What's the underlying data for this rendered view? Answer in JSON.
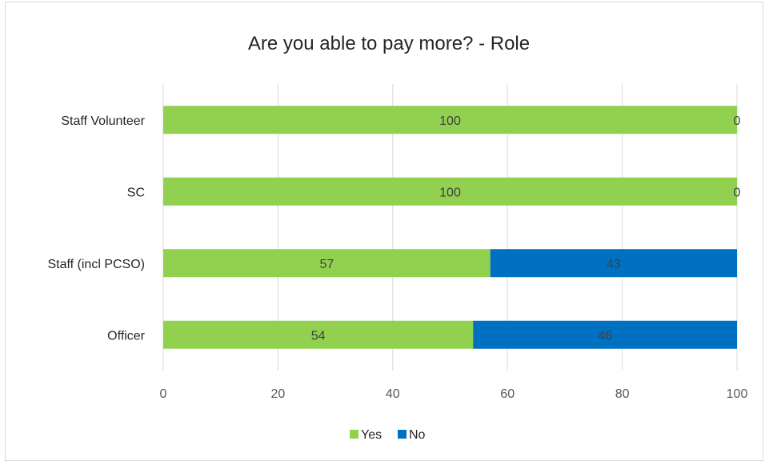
{
  "chart_data": {
    "type": "bar",
    "orientation": "horizontal",
    "stacked": true,
    "title": "Are you able to pay more? - Role",
    "xlabel": "",
    "ylabel": "",
    "categories": [
      "Staff Volunteer",
      "SC",
      "Staff (incl PCSO)",
      "Officer"
    ],
    "series": [
      {
        "name": "Yes",
        "color": "#92d050",
        "values": [
          100,
          100,
          57,
          54
        ]
      },
      {
        "name": "No",
        "color": "#0070c0",
        "values": [
          0,
          0,
          43,
          46
        ]
      }
    ],
    "xlim": [
      0,
      100
    ],
    "xticks": [
      0,
      20,
      40,
      60,
      80,
      100
    ],
    "grid": true,
    "legend": "bottom",
    "data_labels": true
  }
}
